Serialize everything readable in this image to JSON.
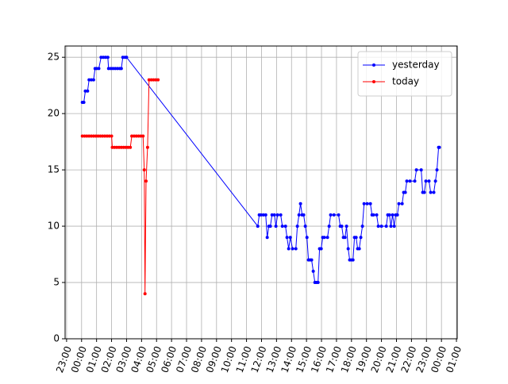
{
  "chart_data": {
    "type": "line",
    "xlim": [
      -1.1,
      25.05
    ],
    "ylim": [
      0,
      26
    ],
    "yticks": [
      0,
      5,
      10,
      15,
      20,
      25
    ],
    "xticks": [
      {
        "value": -1,
        "label": "23:00"
      },
      {
        "value": 0,
        "label": "00:00"
      },
      {
        "value": 1,
        "label": "01:00"
      },
      {
        "value": 2,
        "label": "02:00"
      },
      {
        "value": 3,
        "label": "03:00"
      },
      {
        "value": 4,
        "label": "04:00"
      },
      {
        "value": 5,
        "label": "05:00"
      },
      {
        "value": 6,
        "label": "06:00"
      },
      {
        "value": 7,
        "label": "07:00"
      },
      {
        "value": 8,
        "label": "08:00"
      },
      {
        "value": 9,
        "label": "09:00"
      },
      {
        "value": 10,
        "label": "10:00"
      },
      {
        "value": 11,
        "label": "11:00"
      },
      {
        "value": 12,
        "label": "12:00"
      },
      {
        "value": 13,
        "label": "13:00"
      },
      {
        "value": 14,
        "label": "14:00"
      },
      {
        "value": 15,
        "label": "15:00"
      },
      {
        "value": 16,
        "label": "16:00"
      },
      {
        "value": 17,
        "label": "17:00"
      },
      {
        "value": 18,
        "label": "18:00"
      },
      {
        "value": 19,
        "label": "19:00"
      },
      {
        "value": 20,
        "label": "20:00"
      },
      {
        "value": 21,
        "label": "21:00"
      },
      {
        "value": 22,
        "label": "22:00"
      },
      {
        "value": 23,
        "label": "23:00"
      },
      {
        "value": 24,
        "label": "00:00"
      },
      {
        "value": 25,
        "label": "01:00"
      }
    ],
    "grid": true,
    "legend": "upper right",
    "series": [
      {
        "name": "yesterday",
        "color": "#0000ff",
        "x": [
          0.05,
          0.15,
          0.25,
          0.4,
          0.5,
          0.65,
          0.8,
          0.9,
          1.0,
          1.15,
          1.3,
          1.45,
          1.6,
          1.75,
          1.8,
          1.95,
          2.1,
          2.25,
          2.4,
          2.55,
          2.65,
          2.75,
          2.9,
          3.0,
          11.75,
          11.85,
          11.96,
          12.12,
          12.28,
          12.38,
          12.49,
          12.59,
          12.7,
          12.86,
          12.96,
          13.07,
          13.28,
          13.39,
          13.6,
          13.7,
          13.81,
          13.92,
          14.07,
          14.29,
          14.39,
          14.5,
          14.6,
          14.71,
          14.81,
          14.92,
          15.03,
          15.13,
          15.24,
          15.34,
          15.45,
          15.56,
          15.66,
          15.77,
          15.87,
          15.98,
          16.08,
          16.19,
          16.4,
          16.51,
          16.61,
          16.83,
          17.14,
          17.25,
          17.35,
          17.46,
          17.57,
          17.67,
          17.78,
          17.88,
          17.99,
          18.1,
          18.2,
          18.31,
          18.41,
          18.52,
          18.62,
          18.73,
          18.84,
          19.05,
          19.26,
          19.37,
          19.47,
          19.68,
          19.79,
          20.0,
          20.32,
          20.42,
          20.53,
          20.63,
          20.74,
          20.85,
          20.95,
          21.06,
          21.16,
          21.38,
          21.48,
          21.59,
          21.69,
          21.9,
          22.22,
          22.33,
          22.65,
          22.75,
          22.86,
          22.96,
          23.17,
          23.28,
          23.49,
          23.6,
          23.7,
          23.81,
          23.86
        ],
        "values": [
          21,
          21,
          22,
          22,
          23,
          23,
          23,
          24,
          24,
          24,
          25,
          25,
          25,
          25,
          24,
          24,
          24,
          24,
          24,
          24,
          24,
          25,
          25,
          25,
          10,
          11,
          11,
          11,
          11,
          9,
          10,
          10,
          11,
          11,
          10,
          11,
          11,
          10,
          10,
          9,
          8,
          9,
          8,
          8,
          10,
          11,
          12,
          11,
          11,
          10,
          9,
          7,
          7,
          7,
          6,
          5,
          5,
          5,
          8,
          8,
          9,
          9,
          9,
          10,
          11,
          11,
          11,
          10,
          10,
          9,
          9,
          10,
          8,
          7,
          7,
          7,
          9,
          9,
          8,
          8,
          9,
          10,
          12,
          12,
          12,
          11,
          11,
          11,
          10,
          10,
          10,
          11,
          11,
          10,
          11,
          10,
          11,
          11,
          12,
          12,
          13,
          13,
          14,
          14,
          14,
          15,
          15,
          13,
          13,
          14,
          14,
          13,
          13,
          14,
          15,
          17,
          17
        ]
      },
      {
        "name": "today",
        "color": "#ff0000",
        "x": [
          0.05,
          0.2,
          0.35,
          0.5,
          0.65,
          0.8,
          0.95,
          1.1,
          1.25,
          1.4,
          1.55,
          1.7,
          1.85,
          2.0,
          2.05,
          2.2,
          2.35,
          2.5,
          2.65,
          2.8,
          2.95,
          3.1,
          3.25,
          3.35,
          3.5,
          3.65,
          3.8,
          3.95,
          4.1,
          4.18,
          4.23,
          4.3,
          4.4,
          4.5,
          4.65,
          4.8,
          4.95,
          5.1
        ],
        "values": [
          18,
          18,
          18,
          18,
          18,
          18,
          18,
          18,
          18,
          18,
          18,
          18,
          18,
          18,
          17,
          17,
          17,
          17,
          17,
          17,
          17,
          17,
          17,
          18,
          18,
          18,
          18,
          18,
          18,
          15,
          4,
          14,
          17,
          23,
          23,
          23,
          23,
          23
        ]
      }
    ]
  }
}
